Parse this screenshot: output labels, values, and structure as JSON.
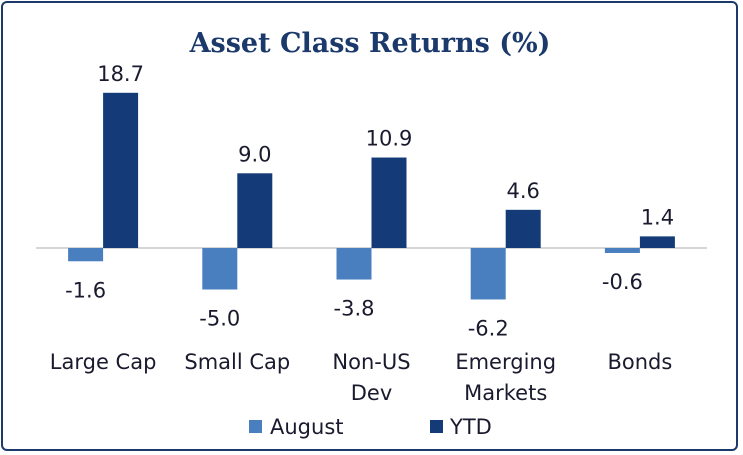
{
  "chart_data": {
    "type": "bar",
    "title": "Asset Class Returns (%)",
    "xlabel": "",
    "ylabel": "",
    "categories": [
      [
        "Large Cap"
      ],
      [
        "Small Cap"
      ],
      [
        "Non-US",
        "Dev"
      ],
      [
        "Emerging",
        "Markets"
      ],
      [
        "Bonds"
      ]
    ],
    "series": [
      {
        "name": "August",
        "values": [
          -1.6,
          -5.0,
          -3.8,
          -6.2,
          -0.6
        ],
        "labels": [
          "-1.6",
          "-5.0",
          "-3.8",
          "-6.2",
          "-0.6"
        ],
        "color": "#4a7fbf"
      },
      {
        "name": "YTD",
        "values": [
          18.7,
          9.0,
          10.9,
          4.6,
          1.4
        ],
        "labels": [
          "18.7",
          "9.0",
          "10.9",
          "4.6",
          "1.4"
        ],
        "color": "#143b78"
      }
    ],
    "ylim": [
      -7,
      19
    ],
    "grid": false,
    "legend": "bottom",
    "zero_line_color": "#c8c8c8"
  }
}
